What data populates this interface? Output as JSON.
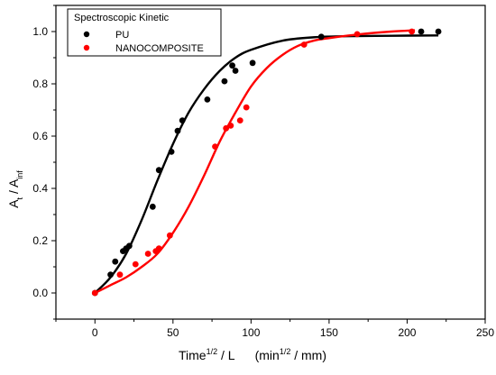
{
  "colors": {
    "PU": "#000000",
    "NANOCOMPOSITE": "#ff0000"
  },
  "chart_data": {
    "type": "scatter",
    "legend": {
      "title": "Spectroscopic Kinetic",
      "placement": "top-left",
      "entries": [
        "PU",
        "NANOCOMPOSITE"
      ]
    },
    "xlabel": "Time",
    "xlabel_sup": "1/2",
    "xlabel_mid": " / L",
    "xlabel_units_open": "(min",
    "xlabel_units_sup": "1/2",
    "xlabel_units_close": " / mm)",
    "ylabel_main": "A",
    "ylabel_sub1": "t",
    "ylabel_mid": " / A",
    "ylabel_sub2": "inf",
    "xlim": [
      -25,
      250
    ],
    "ylim": [
      -0.1,
      1.1
    ],
    "xticks": [
      0,
      50,
      100,
      150,
      200,
      250
    ],
    "xtick_labels": [
      "0",
      "50",
      "100",
      "150",
      "200",
      "250"
    ],
    "yticks": [
      0.0,
      0.2,
      0.4,
      0.6,
      0.8,
      1.0
    ],
    "ytick_labels": [
      "0.0",
      "0.2",
      "0.4",
      "0.6",
      "0.8",
      "1.0"
    ],
    "series": [
      {
        "name": "PU",
        "color": "#000000",
        "points": [
          [
            0,
            0.0
          ],
          [
            10,
            0.07
          ],
          [
            13,
            0.12
          ],
          [
            18,
            0.16
          ],
          [
            20,
            0.17
          ],
          [
            22,
            0.18
          ],
          [
            37,
            0.33
          ],
          [
            41,
            0.47
          ],
          [
            49,
            0.54
          ],
          [
            53,
            0.62
          ],
          [
            56,
            0.66
          ],
          [
            72,
            0.74
          ],
          [
            83,
            0.81
          ],
          [
            88,
            0.87
          ],
          [
            90,
            0.85
          ],
          [
            101,
            0.88
          ],
          [
            145,
            0.98
          ],
          [
            209,
            1.0
          ],
          [
            220,
            1.0
          ]
        ],
        "fit": [
          [
            0,
            0.0
          ],
          [
            10,
            0.06
          ],
          [
            20,
            0.15
          ],
          [
            30,
            0.28
          ],
          [
            40,
            0.43
          ],
          [
            50,
            0.57
          ],
          [
            60,
            0.69
          ],
          [
            70,
            0.78
          ],
          [
            80,
            0.85
          ],
          [
            90,
            0.9
          ],
          [
            100,
            0.93
          ],
          [
            120,
            0.965
          ],
          [
            140,
            0.978
          ],
          [
            160,
            0.982
          ],
          [
            190,
            0.984
          ],
          [
            220,
            0.985
          ]
        ]
      },
      {
        "name": "NANOCOMPOSITE",
        "color": "#ff0000",
        "points": [
          [
            0,
            0.0
          ],
          [
            16,
            0.07
          ],
          [
            26,
            0.11
          ],
          [
            34,
            0.15
          ],
          [
            39,
            0.16
          ],
          [
            41,
            0.17
          ],
          [
            48,
            0.22
          ],
          [
            77,
            0.56
          ],
          [
            84,
            0.63
          ],
          [
            87,
            0.64
          ],
          [
            93,
            0.66
          ],
          [
            97,
            0.71
          ],
          [
            134,
            0.95
          ],
          [
            168,
            0.99
          ],
          [
            203,
            1.0
          ]
        ],
        "fit": [
          [
            0,
            0.0
          ],
          [
            10,
            0.03
          ],
          [
            20,
            0.06
          ],
          [
            30,
            0.1
          ],
          [
            40,
            0.15
          ],
          [
            50,
            0.23
          ],
          [
            60,
            0.33
          ],
          [
            70,
            0.45
          ],
          [
            80,
            0.58
          ],
          [
            90,
            0.69
          ],
          [
            100,
            0.79
          ],
          [
            110,
            0.86
          ],
          [
            120,
            0.91
          ],
          [
            130,
            0.945
          ],
          [
            140,
            0.965
          ],
          [
            150,
            0.975
          ],
          [
            170,
            0.99
          ],
          [
            190,
            1.0
          ],
          [
            205,
            1.005
          ]
        ]
      }
    ]
  }
}
